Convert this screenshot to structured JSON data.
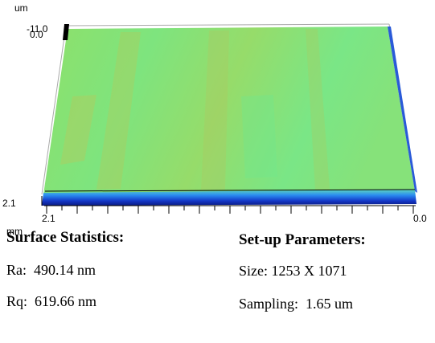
{
  "axes": {
    "z_unit": "um",
    "z_top": "-11.0",
    "z_origin": "0.0",
    "y_max": "2.1",
    "x_start": "2.1",
    "x_end": "0.0",
    "x_unit": "mm"
  },
  "surface_statistics": {
    "title": "Surface Statistics:",
    "rows": [
      "Ra:  490.14 nm",
      "Rq:  619.66 nm"
    ]
  },
  "setup_parameters": {
    "title": "Set-up Parameters:",
    "rows": [
      "Size: 1253 X 1071",
      "Sampling:  1.65 um"
    ]
  }
}
